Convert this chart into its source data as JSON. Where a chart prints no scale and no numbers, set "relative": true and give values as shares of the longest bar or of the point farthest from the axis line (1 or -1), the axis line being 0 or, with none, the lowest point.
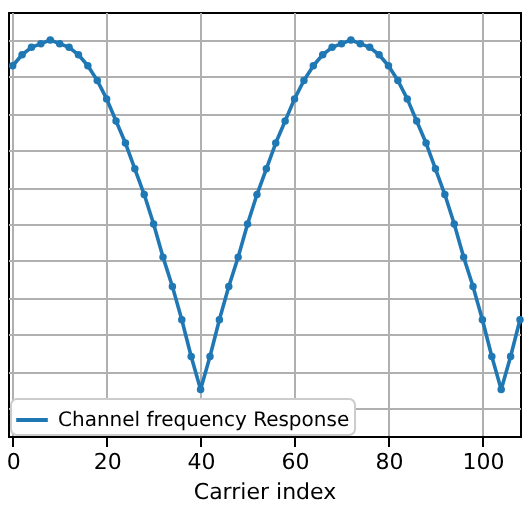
{
  "chart_data": {
    "type": "line",
    "xlabel": "Carrier index",
    "relative": true,
    "x": [
      0,
      2,
      4,
      6,
      8,
      10,
      12,
      14,
      16,
      18,
      20,
      22,
      24,
      26,
      28,
      30,
      32,
      34,
      36,
      38,
      40,
      42,
      44,
      46,
      48,
      50,
      52,
      54,
      56,
      58,
      60,
      62,
      64,
      66,
      68,
      70,
      72,
      74,
      76,
      78,
      80,
      82,
      84,
      86,
      88,
      90,
      92,
      94,
      96,
      98,
      100,
      102,
      104,
      106,
      108
    ],
    "series": [
      {
        "name": "Channel frequency Response",
        "color": "#1f77b4",
        "values": [
          0.93,
          0.96,
          0.98,
          0.99,
          1.0,
          0.99,
          0.98,
          0.96,
          0.93,
          0.89,
          0.84,
          0.78,
          0.72,
          0.65,
          0.58,
          0.5,
          0.41,
          0.33,
          0.24,
          0.14,
          0.05,
          0.14,
          0.24,
          0.33,
          0.41,
          0.5,
          0.58,
          0.65,
          0.72,
          0.78,
          0.84,
          0.89,
          0.93,
          0.96,
          0.98,
          0.99,
          1.0,
          0.99,
          0.98,
          0.96,
          0.93,
          0.89,
          0.84,
          0.78,
          0.72,
          0.65,
          0.58,
          0.5,
          0.41,
          0.33,
          0.24,
          0.14,
          0.05,
          0.14,
          0.24
        ]
      }
    ],
    "xlim": [
      -1,
      108
    ],
    "xticks": [
      0,
      20,
      40,
      60,
      80,
      100
    ],
    "grid": true,
    "legend": "bottom left",
    "marker": "circle",
    "line_style": "solid"
  }
}
